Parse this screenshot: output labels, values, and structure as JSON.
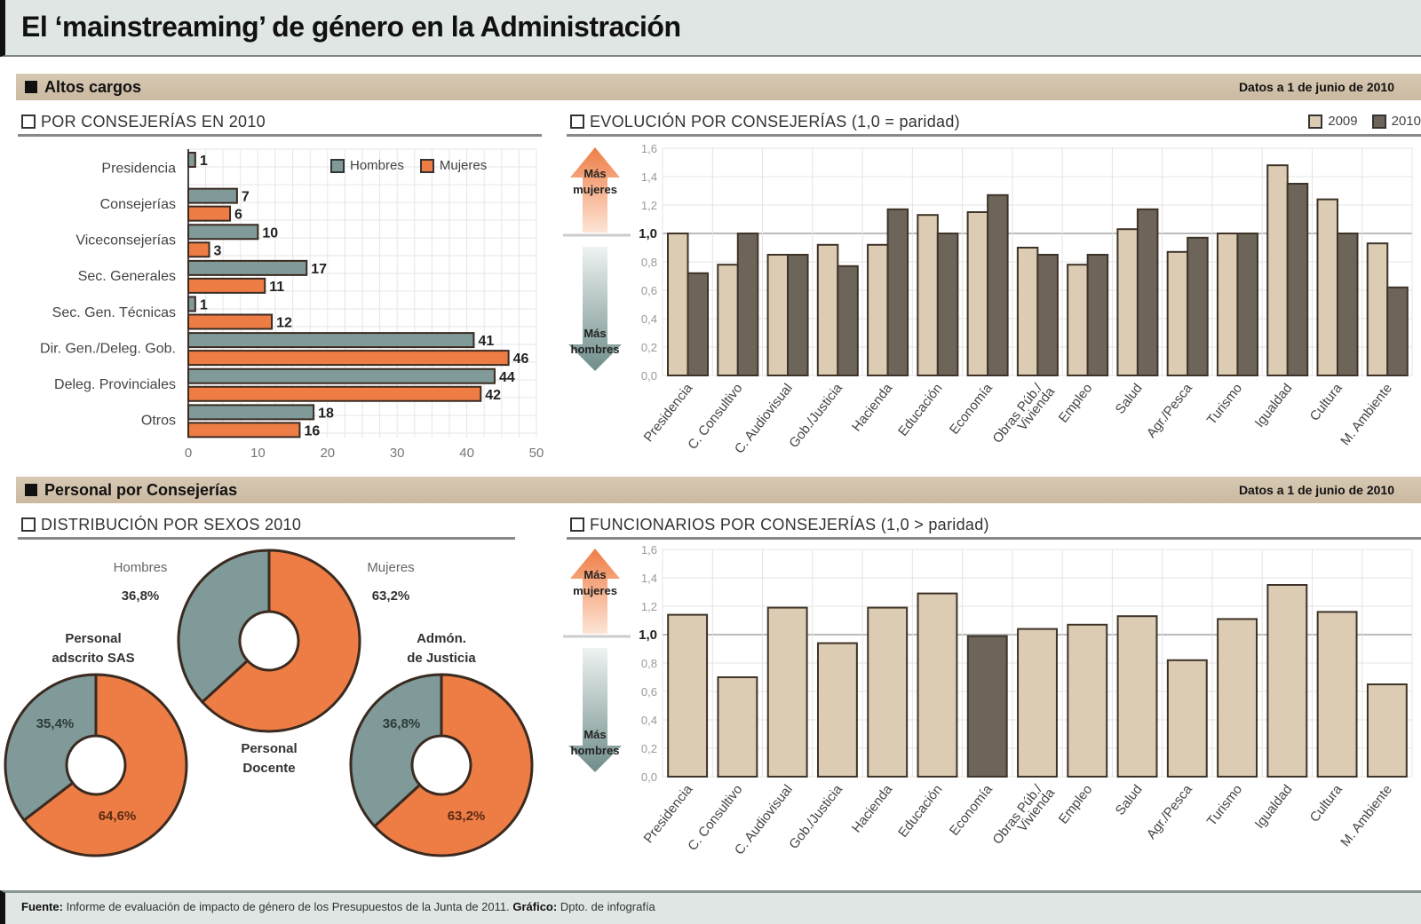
{
  "title": "El ‘mainstreaming’ de género en la Administración",
  "sections": {
    "altos_cargos": {
      "label": "Altos cargos",
      "date": "Datos a 1 de junio de 2010"
    },
    "personal": {
      "label": "Personal por Consejerías",
      "date": "Datos a 1 de junio de 2010"
    }
  },
  "arrows": {
    "up": "Más mujeres",
    "down": "Más hombres"
  },
  "colors": {
    "hombres": "#7f9a98",
    "mujeres": "#ee7d45",
    "y2009": "#dcccb4",
    "y2010": "#6e655a",
    "func": "#dcccb4",
    "func_highlight": "#6e655a"
  },
  "footer": {
    "fuente_label": "Fuente:",
    "fuente": "Informe de evaluación de impacto de género de los Presupuestos de la Junta de 2011.",
    "grafico_label": "Gráfico:",
    "grafico": "Dpto. de infografía"
  },
  "chart_data": [
    {
      "id": "por_consejerias",
      "type": "bar",
      "orientation": "horizontal",
      "title": "POR CONSEJERÍAS EN 2010",
      "categories": [
        "Presidencia",
        "Consejerías",
        "Viceconsejerías",
        "Sec. Generales",
        "Sec. Gen. Técnicas",
        "Dir. Gen./Deleg. Gob.",
        "Deleg. Provinciales",
        "Otros"
      ],
      "series": [
        {
          "name": "Hombres",
          "values": [
            1,
            7,
            10,
            17,
            1,
            41,
            44,
            18
          ]
        },
        {
          "name": "Mujeres",
          "values": [
            0,
            6,
            3,
            11,
            12,
            46,
            42,
            16
          ]
        }
      ],
      "value_labels": {
        "Hombres": [
          "1",
          "7",
          "10",
          "17",
          "1",
          "41",
          "44",
          "18"
        ],
        "Mujeres": [
          "",
          "6",
          "3",
          "11",
          "12",
          "46",
          "42",
          "16"
        ]
      },
      "xlim": [
        0,
        50
      ],
      "xticks": [
        "0",
        "10",
        "20",
        "30",
        "40",
        "50"
      ],
      "legend": "top-right",
      "grid": true
    },
    {
      "id": "evolucion",
      "type": "bar",
      "title": "EVOLUCIÓN POR CONSEJERÍAS (1,0 = paridad)",
      "categories": [
        "Presidencia",
        "C. Consultivo",
        "C. Audiovisual",
        "Gob./Justicia",
        "Hacienda",
        "Educación",
        "Economía",
        "Obras Púb./Vivienda",
        "Empleo",
        "Salud",
        "Agr./Pesca",
        "Turismo",
        "Igualdad",
        "Cultura",
        "M. Ambiente"
      ],
      "series": [
        {
          "name": "2009",
          "values": [
            1.0,
            0.78,
            0.85,
            0.92,
            0.92,
            1.13,
            1.15,
            0.9,
            0.78,
            1.03,
            0.87,
            1.0,
            1.48,
            1.24,
            0.93
          ]
        },
        {
          "name": "2010",
          "values": [
            0.72,
            1.0,
            0.85,
            0.77,
            1.17,
            1.0,
            1.27,
            0.85,
            0.85,
            1.17,
            0.97,
            1.0,
            1.35,
            1.0,
            0.62
          ]
        }
      ],
      "ylim": [
        0,
        1.6
      ],
      "yticks": [
        "0,0",
        "0,2",
        "0,4",
        "0,6",
        "0,8",
        "1,0",
        "1,2",
        "1,4",
        "1,6"
      ],
      "legend": "top-right",
      "grid": true
    },
    {
      "id": "distribucion",
      "type": "pie",
      "title": "DISTRIBUCIÓN POR SEXOS 2010",
      "legend_labels": {
        "hombres": "Hombres",
        "mujeres": "Mujeres",
        "hombres_pct": "36,8%",
        "mujeres_pct": "63,2%"
      },
      "pies": [
        {
          "name": "Personal Docente",
          "label": "Personal Docente",
          "values": {
            "Hombres": 36.8,
            "Mujeres": 63.2
          }
        },
        {
          "name": "Personal adscrito SAS",
          "label": "Personal adscrito SAS",
          "values": {
            "Hombres": 35.4,
            "Mujeres": 64.6
          },
          "labels": [
            "35,4%",
            "64,6%"
          ]
        },
        {
          "name": "Admón. de Justicia",
          "label": "Admón. de Justicia",
          "values": {
            "Hombres": 36.8,
            "Mujeres": 63.2
          },
          "labels": [
            "36,8%",
            "63,2%"
          ]
        }
      ]
    },
    {
      "id": "funcionarios",
      "type": "bar",
      "title": "FUNCIONARIOS POR CONSEJERÍAS (1,0 > paridad)",
      "categories": [
        "Presidencia",
        "C. Consultivo",
        "C. Audiovisual",
        "Gob./Justicia",
        "Hacienda",
        "Educación",
        "Economía",
        "Obras Púb./Vivienda",
        "Empleo",
        "Salud",
        "Agr./Pesca",
        "Turismo",
        "Igualdad",
        "Cultura",
        "M. Ambiente"
      ],
      "values": [
        1.14,
        0.7,
        1.19,
        0.94,
        1.19,
        1.29,
        0.99,
        1.04,
        1.07,
        1.13,
        0.82,
        1.11,
        1.35,
        1.16,
        0.65
      ],
      "highlight": "Economía",
      "ylim": [
        0,
        1.6
      ],
      "yticks": [
        "0,0",
        "0,2",
        "0,4",
        "0,6",
        "0,8",
        "1,0",
        "1,2",
        "1,4",
        "1,6"
      ],
      "grid": true
    }
  ]
}
